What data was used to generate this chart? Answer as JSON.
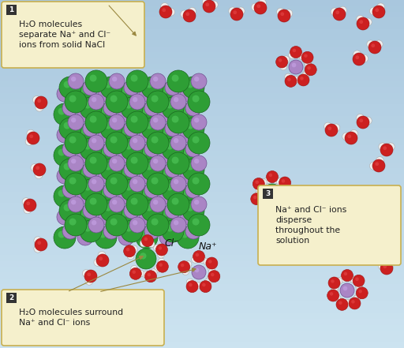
{
  "bg_top": "#cde3f0",
  "bg_bottom": "#a8c8de",
  "cl_color": "#2e9e35",
  "cl_edge": "#1a6820",
  "cl_shine": "#55cc60",
  "na_color": "#aa85c5",
  "na_edge": "#705090",
  "na_shine": "#ccaaee",
  "o_color": "#cc2020",
  "o_edge": "#991010",
  "o_shine": "#ee5555",
  "h_color": "#eeeeee",
  "h_edge": "#aaaaaa",
  "label_bg": "#f5f0cc",
  "label_border": "#c8b050",
  "label_text": "#222222",
  "badge_bg": "#333333",
  "arrow_color": "#9a8840",
  "label1": "H₂O molecules\nseparate Na⁺ and Cl⁻\nions from solid NaCl",
  "label2": "H₂O molecules surround\nNa⁺ and Cl⁻ ions",
  "label3": "Na⁺ and Cl⁻ ions\ndisperse\nthroughout the\nsolution",
  "cl_ion_label": "Cl⁻",
  "na_ion_label": "Na⁺",
  "figsize": [
    5.12,
    4.41
  ],
  "dpi": 100
}
